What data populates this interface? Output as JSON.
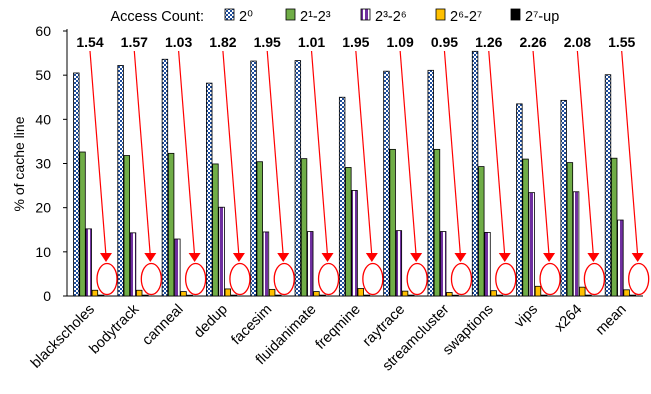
{
  "chart_data": {
    "type": "bar",
    "legend_title": "Access Count:",
    "legend_placement": "top",
    "ylabel": "% of cache line",
    "xlabel": "",
    "ylim": [
      0,
      60
    ],
    "yticks": [
      0,
      10,
      20,
      30,
      40,
      50,
      60
    ],
    "grid": false,
    "categories": [
      "blackscholes",
      "bodytrack",
      "canneal",
      "dedup",
      "facesim",
      "fluidanimate",
      "freqmine",
      "raytrace",
      "streamcluster",
      "swaptions",
      "vips",
      "x264",
      "mean"
    ],
    "series": [
      {
        "name": "2⁰",
        "color": "#1f4e9c",
        "pattern": "checker-blue-white",
        "values": [
          50.5,
          52.2,
          53.6,
          48.2,
          53.2,
          53.3,
          45.0,
          50.9,
          51.1,
          55.4,
          43.5,
          44.3,
          50.1
        ]
      },
      {
        "name": "2¹-2³",
        "color": "#70ad47",
        "pattern": "solid",
        "values": [
          32.6,
          31.8,
          32.3,
          29.9,
          30.4,
          31.1,
          29.1,
          33.2,
          33.2,
          29.3,
          31.0,
          30.2,
          31.2
        ]
      },
      {
        "name": "2³-2⁶",
        "color": "#7030a0",
        "pattern": "vertical-stripe-purple-white",
        "values": [
          15.2,
          14.3,
          12.9,
          20.1,
          14.5,
          14.6,
          23.9,
          14.8,
          14.6,
          14.4,
          23.4,
          23.6,
          17.2
        ]
      },
      {
        "name": "2⁶-2⁷",
        "color": "#ffc000",
        "pattern": "solid",
        "values": [
          1.3,
          1.3,
          1.0,
          1.6,
          1.5,
          1.0,
          1.7,
          1.1,
          0.8,
          1.2,
          2.2,
          2.0,
          1.4
        ]
      },
      {
        "name": "2⁷-up",
        "color": "#000000",
        "pattern": "solid",
        "values": [
          0.2,
          0.2,
          0.1,
          0.2,
          0.2,
          0.2,
          0.2,
          0.2,
          0.1,
          0.2,
          0.2,
          0.2,
          0.2
        ]
      }
    ],
    "annotations": [
      "1.54",
      "1.57",
      "1.03",
      "1.82",
      "1.95",
      "1.01",
      "1.95",
      "1.09",
      "0.95",
      "1.26",
      "2.26",
      "2.08",
      "1.55"
    ],
    "annotation_color": "#ff0000"
  }
}
